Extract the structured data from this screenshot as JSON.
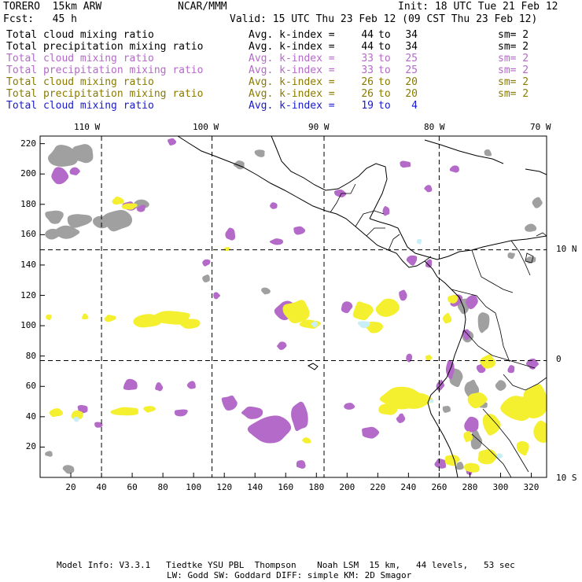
{
  "header": {
    "model": "TORERO  15km ARW",
    "org": "NCAR/MMM",
    "init": "Init: 18 UTC Tue 21 Feb 12",
    "fcst": "Fcst:   45 h",
    "valid": "Valid: 15 UTC Thu 23 Feb 12 (09 CST Thu 23 Feb 12)"
  },
  "legend": [
    {
      "name": "Total cloud mixing ratio",
      "avg": "Avg. k-index =",
      "hi": "44",
      "to": "to",
      "lo": "34",
      "sm": "sm= 2",
      "color": "#000000"
    },
    {
      "name": "Total precipitation mixing ratio",
      "avg": "Avg. k-index =",
      "hi": "44",
      "to": "to",
      "lo": "34",
      "sm": "sm= 2",
      "color": "#000000"
    },
    {
      "name": "Total cloud mixing ratio",
      "avg": "Avg. k-index =",
      "hi": "33",
      "to": "to",
      "lo": "25",
      "sm": "sm= 2",
      "color": "#b46ac8"
    },
    {
      "name": "Total precipitation mixing ratio",
      "avg": "Avg. k-index =",
      "hi": "33",
      "to": "to",
      "lo": "25",
      "sm": "sm= 2",
      "color": "#b46ac8"
    },
    {
      "name": "Total cloud mixing ratio",
      "avg": "Avg. k-index =",
      "hi": "26",
      "to": "to",
      "lo": "20",
      "sm": "sm= 2",
      "color": "#8a7a00"
    },
    {
      "name": "Total precipitation mixing ratio",
      "avg": "Avg. k-index =",
      "hi": "26",
      "to": "to",
      "lo": "20",
      "sm": "sm= 2",
      "color": "#8a7a00"
    },
    {
      "name": "Total cloud mixing ratio",
      "avg": "Avg. k-index =",
      "hi": "19",
      "to": "to",
      "lo": "4",
      "sm": "",
      "color": "#1a1acc"
    }
  ],
  "top_ticks": [
    "110 W",
    "100 W",
    "90 W",
    "80 W",
    "70 W"
  ],
  "right_ticks": [
    "10 N",
    "0",
    "10 S"
  ],
  "y_ticks": [
    "220",
    "200",
    "180",
    "160",
    "140",
    "120",
    "100",
    "80",
    "60",
    "40",
    "20"
  ],
  "x_ticks": [
    "20",
    "40",
    "60",
    "80",
    "100",
    "120",
    "140",
    "160",
    "180",
    "200",
    "220",
    "240",
    "260",
    "280",
    "300",
    "320"
  ],
  "footer": {
    "line1": "Model Info: V3.3.1   Tiedtke YSU PBL  Thompson    Noah LSM  15 km,   44 levels,   53 sec",
    "line2": "LW: Godd SW: Goddard DIFF: simple KM: 2D Smagor"
  },
  "colors": {
    "gray": "#a0a0a0",
    "purple": "#b46ac8",
    "yellow": "#f4f030",
    "cyan": "#c8eef8",
    "coast": "#000000"
  },
  "map_grid": {
    "domain_x": [
      0,
      330
    ],
    "domain_y": [
      0,
      225
    ],
    "meridian_ticks_grid": [
      40,
      112,
      185,
      260
    ],
    "parallel_ticks_grid": [
      150,
      77
    ]
  }
}
